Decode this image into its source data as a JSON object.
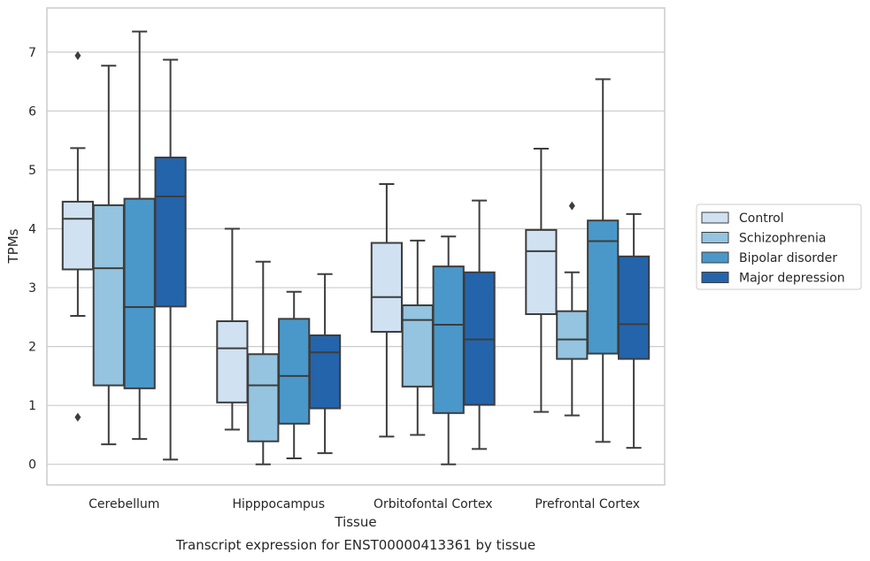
{
  "chart_data": {
    "type": "box",
    "xlabel": "Tissue",
    "ylabel": "TPMs",
    "caption": "Transcript expression for ENST00000413361 by tissue",
    "ylim": [
      -0.35,
      7.75
    ],
    "yticks": [
      0,
      1,
      2,
      3,
      4,
      5,
      6,
      7
    ],
    "grid": "horizontal",
    "legend_position": "right",
    "categories": [
      "Cerebellum",
      "Hipppocampus",
      "Orbitofontal Cortex",
      "Prefrontal Cortex"
    ],
    "series": [
      {
        "name": "Control",
        "color": "#d0e1f2",
        "boxes": [
          {
            "whislo": 2.52,
            "q1": 3.31,
            "med": 4.17,
            "q3": 4.46,
            "whishi": 5.37,
            "fliers": [
              6.94,
              0.8
            ]
          },
          {
            "whislo": 0.59,
            "q1": 1.05,
            "med": 1.97,
            "q3": 2.43,
            "whishi": 4.0,
            "fliers": []
          },
          {
            "whislo": 0.47,
            "q1": 2.25,
            "med": 2.84,
            "q3": 3.76,
            "whishi": 4.76,
            "fliers": []
          },
          {
            "whislo": 0.89,
            "q1": 2.55,
            "med": 3.62,
            "q3": 3.98,
            "whishi": 5.36,
            "fliers": []
          }
        ]
      },
      {
        "name": "Schizophrenia",
        "color": "#94c4df",
        "boxes": [
          {
            "whislo": 0.34,
            "q1": 1.34,
            "med": 3.33,
            "q3": 4.4,
            "whishi": 6.77,
            "fliers": []
          },
          {
            "whislo": 0.0,
            "q1": 0.39,
            "med": 1.34,
            "q3": 1.87,
            "whishi": 3.44,
            "fliers": []
          },
          {
            "whislo": 0.5,
            "q1": 1.32,
            "med": 2.45,
            "q3": 2.7,
            "whishi": 3.8,
            "fliers": []
          },
          {
            "whislo": 0.83,
            "q1": 1.79,
            "med": 2.12,
            "q3": 2.6,
            "whishi": 3.26,
            "fliers": [
              4.39
            ]
          }
        ]
      },
      {
        "name": "Bipolar disorder",
        "color": "#4a98c9",
        "boxes": [
          {
            "whislo": 0.43,
            "q1": 1.29,
            "med": 2.67,
            "q3": 4.51,
            "whishi": 7.35,
            "fliers": []
          },
          {
            "whislo": 0.1,
            "q1": 0.69,
            "med": 1.5,
            "q3": 2.47,
            "whishi": 2.93,
            "fliers": []
          },
          {
            "whislo": 0.0,
            "q1": 0.87,
            "med": 2.37,
            "q3": 3.36,
            "whishi": 3.87,
            "fliers": []
          },
          {
            "whislo": 0.38,
            "q1": 1.88,
            "med": 3.79,
            "q3": 4.14,
            "whishi": 6.54,
            "fliers": []
          }
        ]
      },
      {
        "name": "Major depression",
        "color": "#2464ab",
        "boxes": [
          {
            "whislo": 0.08,
            "q1": 2.68,
            "med": 4.55,
            "q3": 5.21,
            "whishi": 6.87,
            "fliers": []
          },
          {
            "whislo": 0.19,
            "q1": 0.95,
            "med": 1.9,
            "q3": 2.19,
            "whishi": 3.23,
            "fliers": []
          },
          {
            "whislo": 0.26,
            "q1": 1.01,
            "med": 2.12,
            "q3": 3.26,
            "whishi": 4.48,
            "fliers": []
          },
          {
            "whislo": 0.28,
            "q1": 1.79,
            "med": 2.38,
            "q3": 3.53,
            "whishi": 4.25,
            "fliers": []
          }
        ]
      }
    ]
  }
}
